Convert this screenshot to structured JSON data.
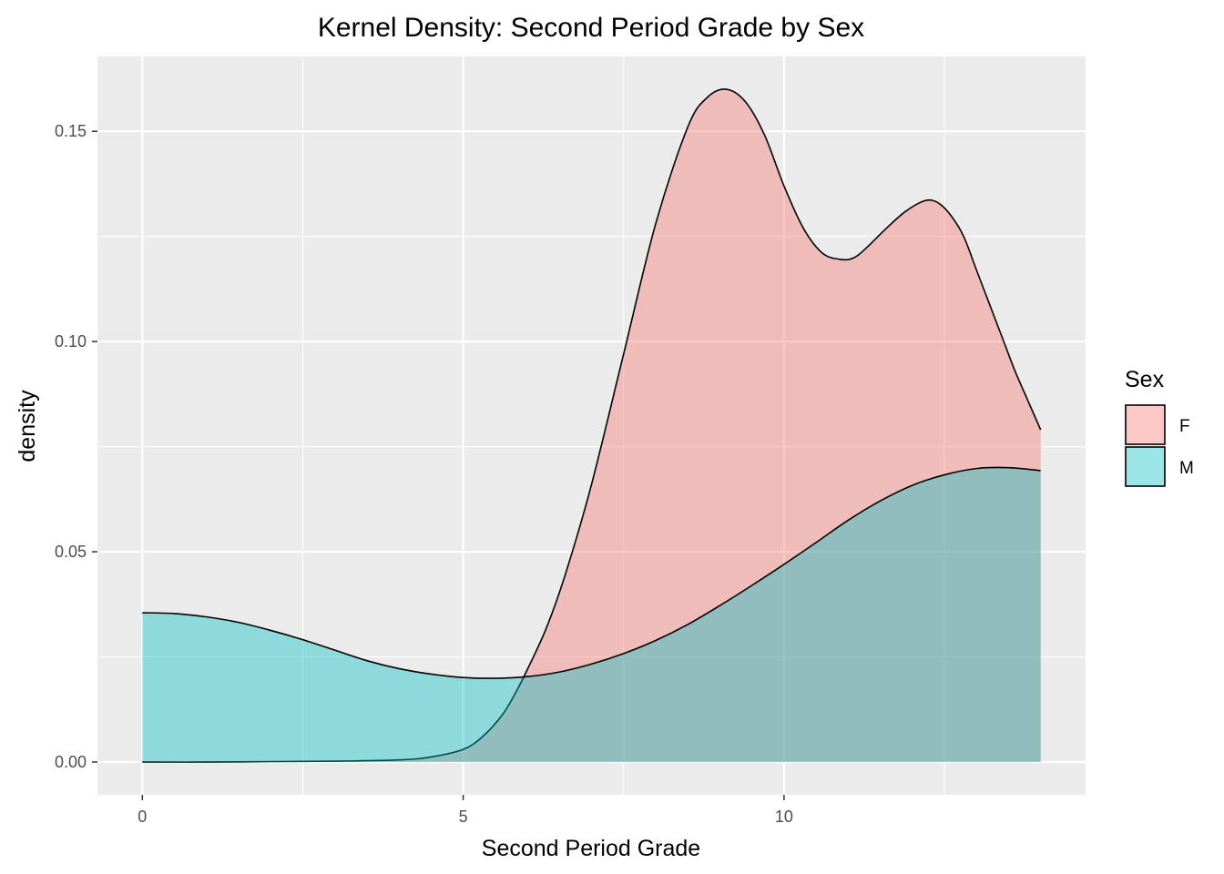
{
  "chart_data": {
    "type": "area",
    "title": "Kernel Density: Second Period Grade by Sex",
    "xlabel": "Second Period Grade",
    "ylabel": "density",
    "xlim": [
      -0.7,
      14.7
    ],
    "ylim": [
      -0.0078,
      0.1678
    ],
    "x_ticks": [
      0,
      5,
      10
    ],
    "x_tick_labels": [
      "0",
      "5",
      "10"
    ],
    "y_ticks": [
      0.0,
      0.05,
      0.1,
      0.15
    ],
    "y_tick_labels": [
      "0.00",
      "0.05",
      "0.10",
      "0.15"
    ],
    "grid": true,
    "legend": {
      "title": "Sex",
      "position": "right"
    },
    "series": [
      {
        "name": "F",
        "color": "#F8766D",
        "x": [
          0,
          1,
          2,
          3,
          4,
          4.5,
          5,
          5.3,
          5.6,
          5.8,
          6.0,
          6.3,
          6.6,
          7.0,
          7.5,
          8.0,
          8.5,
          8.8,
          9.1,
          9.4,
          9.7,
          10.0,
          10.3,
          10.6,
          10.9,
          11.1,
          11.3,
          11.6,
          11.9,
          12.2,
          12.4,
          12.6,
          12.8,
          13.0,
          13.2,
          13.4,
          13.6,
          13.8,
          14.0
        ],
        "y": [
          0.0,
          0.0,
          0.0001,
          0.0002,
          0.0005,
          0.0012,
          0.003,
          0.006,
          0.011,
          0.016,
          0.022,
          0.032,
          0.045,
          0.066,
          0.097,
          0.128,
          0.151,
          0.158,
          0.16,
          0.157,
          0.149,
          0.137,
          0.127,
          0.121,
          0.1195,
          0.12,
          0.1225,
          0.127,
          0.131,
          0.1335,
          0.133,
          0.13,
          0.125,
          0.117,
          0.109,
          0.101,
          0.093,
          0.086,
          0.079
        ]
      },
      {
        "name": "M",
        "color": "#00BFC4",
        "x": [
          0,
          0.5,
          1,
          1.5,
          2,
          2.5,
          3,
          3.5,
          4,
          4.5,
          5,
          5.5,
          6,
          6.5,
          7,
          7.5,
          8,
          8.5,
          9,
          9.5,
          10,
          10.5,
          11,
          11.5,
          12,
          12.5,
          13,
          13.5,
          14
        ],
        "y": [
          0.0355,
          0.0353,
          0.0345,
          0.0332,
          0.0313,
          0.0291,
          0.0266,
          0.0241,
          0.0222,
          0.0209,
          0.0201,
          0.0199,
          0.0203,
          0.0214,
          0.0233,
          0.0258,
          0.0289,
          0.0327,
          0.0372,
          0.042,
          0.047,
          0.0522,
          0.0575,
          0.0621,
          0.0658,
          0.0683,
          0.0698,
          0.07,
          0.0693
        ]
      }
    ]
  }
}
